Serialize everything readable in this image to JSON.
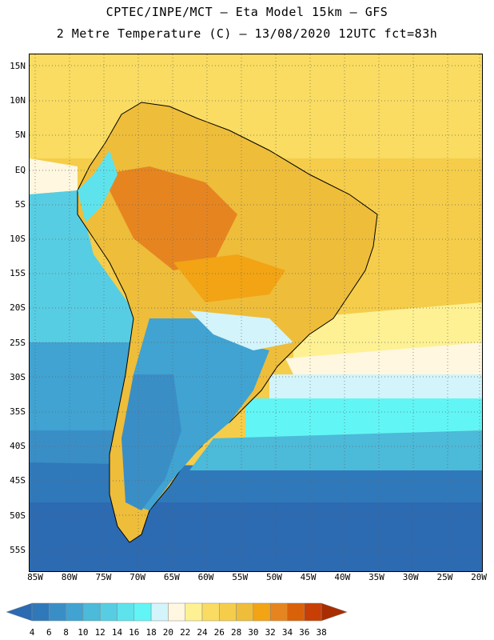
{
  "header": {
    "line1": "CPTEC/INPE/MCT –  Eta Model 15km – GFS",
    "line2": "2 Metre Temperature (C) – 13/08/2020 12UTC fct=83h"
  },
  "map": {
    "lat_labels": [
      "15N",
      "10N",
      "5N",
      "EQ",
      "5S",
      "10S",
      "15S",
      "20S",
      "25S",
      "30S",
      "35S",
      "40S",
      "45S",
      "50S",
      "55S"
    ],
    "lon_labels": [
      "85W",
      "80W",
      "75W",
      "70W",
      "65W",
      "60W",
      "55W",
      "50W",
      "45W",
      "40W",
      "35W",
      "30W",
      "25W",
      "20W"
    ],
    "grid": "dotted"
  },
  "legend": {
    "values": [
      "4",
      "6",
      "8",
      "10",
      "12",
      "14",
      "16",
      "18",
      "20",
      "22",
      "24",
      "26",
      "28",
      "30",
      "32",
      "34",
      "36",
      "38"
    ],
    "colors": [
      "#2c6ab1",
      "#2f79bb",
      "#3a8ec6",
      "#40a3d2",
      "#4cbad9",
      "#57cde3",
      "#5ee3ec",
      "#62f5f5",
      "#d3f4fb",
      "#fff7e0",
      "#fdf193",
      "#f9dc61",
      "#f5cd4a",
      "#eebd3a",
      "#f2a414",
      "#e6851f",
      "#d9610a",
      "#c83e04",
      "#a82d02"
    ]
  }
}
